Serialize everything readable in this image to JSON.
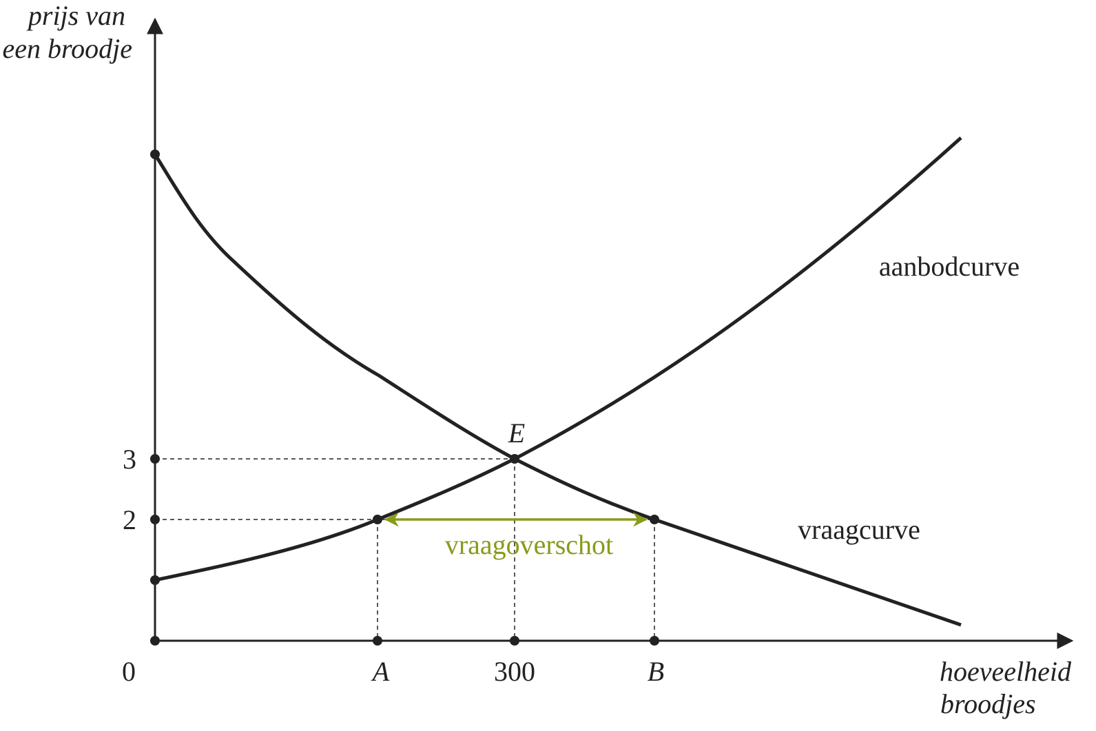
{
  "axes": {
    "y_label": [
      "prijs van",
      "een broodje"
    ],
    "x_label": [
      "hoeveelheid",
      "broodjes"
    ],
    "origin": "0"
  },
  "y_ticks": [
    "3",
    "2"
  ],
  "x_ticks": [
    "A",
    "300",
    "B"
  ],
  "point": "E",
  "curves": [
    "aanbodcurve",
    "vraagcurve"
  ],
  "annotation": "vraagoverschot"
}
